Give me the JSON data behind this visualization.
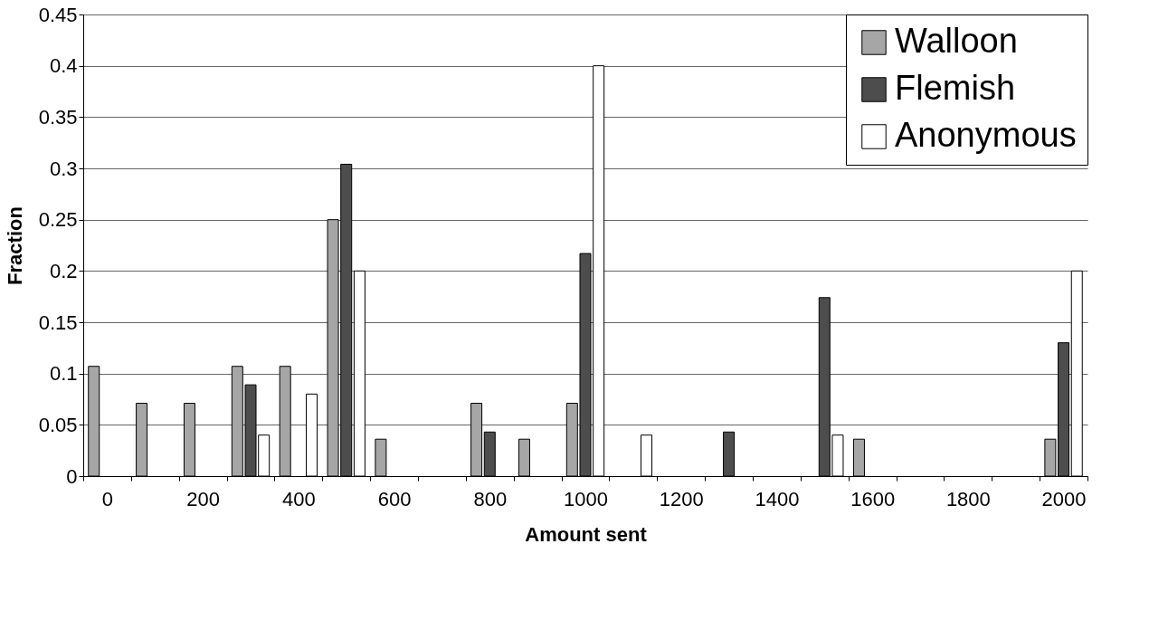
{
  "chart_data": {
    "type": "bar",
    "xlabel": "Amount sent",
    "ylabel": "Fraction",
    "categories": [
      "0",
      null,
      "200",
      null,
      "400",
      null,
      "600",
      null,
      "800",
      null,
      "1000",
      null,
      "1200",
      null,
      "1400",
      null,
      "1600",
      null,
      "1800",
      null,
      "2000"
    ],
    "series": [
      {
        "name": "Walloon",
        "color": "#a6a6a6",
        "values": [
          0.107,
          0.071,
          0.071,
          0.107,
          0.107,
          0.25,
          0.036,
          null,
          0.071,
          0.036,
          0.071,
          null,
          null,
          null,
          null,
          null,
          0.036,
          null,
          null,
          null,
          0.036
        ]
      },
      {
        "name": "Flemish",
        "color": "#4d4d4d",
        "values": [
          null,
          null,
          null,
          0.089,
          null,
          0.304,
          null,
          null,
          0.043,
          null,
          0.217,
          null,
          null,
          0.043,
          null,
          0.174,
          null,
          null,
          null,
          null,
          0.13
        ]
      },
      {
        "name": "Anonymous",
        "color": "#ffffff",
        "values": [
          null,
          null,
          null,
          0.04,
          0.08,
          0.2,
          null,
          null,
          null,
          null,
          0.4,
          0.04,
          null,
          null,
          null,
          0.04,
          null,
          null,
          null,
          null,
          0.2
        ]
      }
    ],
    "ylim": [
      0,
      0.45
    ],
    "yticks": [
      0,
      0.05,
      0.1,
      0.15,
      0.2,
      0.25,
      0.3,
      0.35,
      0.4,
      0.45
    ],
    "grid": "y",
    "legend": "top right"
  }
}
